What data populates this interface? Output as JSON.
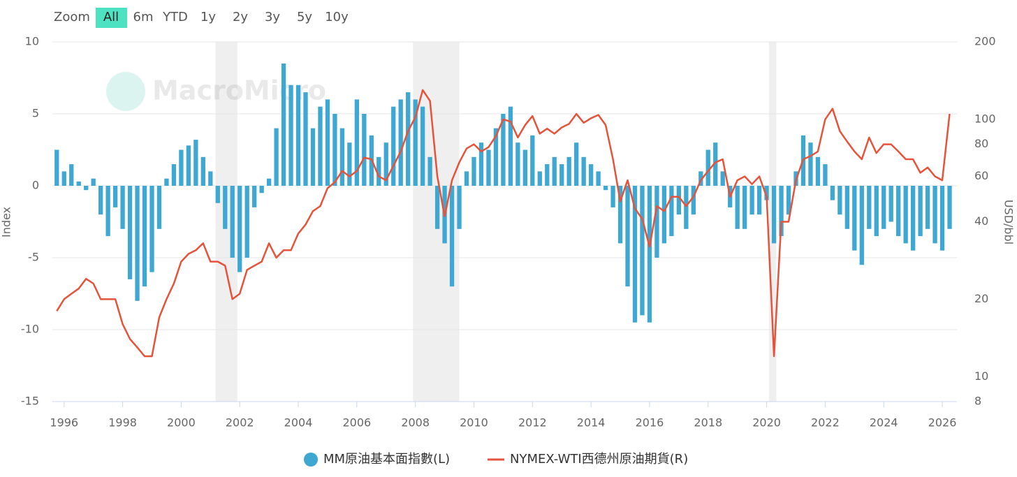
{
  "chart_data": {
    "type": "combo",
    "range_selector": {
      "label": "Zoom",
      "buttons": [
        "All",
        "6m",
        "YTD",
        "1y",
        "2y",
        "3y",
        "5y",
        "10y"
      ],
      "selected": 0
    },
    "watermark": "MacroMicro",
    "ylabel": "Index",
    "y2label": "USD/bbl",
    "xlim": [
      1995.6,
      2026.5
    ],
    "xticks": [
      1996,
      1998,
      2000,
      2002,
      2004,
      2006,
      2008,
      2010,
      2012,
      2014,
      2016,
      2018,
      2020,
      2022,
      2024,
      2026
    ],
    "ylim": [
      -15,
      10
    ],
    "yticks": [
      -15,
      -10,
      -5,
      0,
      5,
      10
    ],
    "y2lim": [
      8,
      200
    ],
    "y2ticks": [
      8,
      10,
      20,
      40,
      60,
      80,
      100,
      200
    ],
    "y2log": true,
    "grid": true,
    "legend": "bottom",
    "shading": [
      [
        2001.17,
        2001.92
      ],
      [
        2007.92,
        2009.5
      ],
      [
        2020.08,
        2020.33
      ]
    ],
    "x": [
      1995.75,
      1996,
      1996.25,
      1996.5,
      1996.75,
      1997,
      1997.25,
      1997.5,
      1997.75,
      1998,
      1998.25,
      1998.5,
      1998.75,
      1999,
      1999.25,
      1999.5,
      1999.75,
      2000,
      2000.25,
      2000.5,
      2000.75,
      2001,
      2001.25,
      2001.5,
      2001.75,
      2002,
      2002.25,
      2002.5,
      2002.75,
      2003,
      2003.25,
      2003.5,
      2003.75,
      2004,
      2004.25,
      2004.5,
      2004.75,
      2005,
      2005.25,
      2005.5,
      2005.75,
      2006,
      2006.25,
      2006.5,
      2006.75,
      2007,
      2007.25,
      2007.5,
      2007.75,
      2008,
      2008.25,
      2008.5,
      2008.75,
      2009,
      2009.25,
      2009.5,
      2009.75,
      2010,
      2010.25,
      2010.5,
      2010.75,
      2011,
      2011.25,
      2011.5,
      2011.75,
      2012,
      2012.25,
      2012.5,
      2012.75,
      2013,
      2013.25,
      2013.5,
      2013.75,
      2014,
      2014.25,
      2014.5,
      2014.75,
      2015,
      2015.25,
      2015.5,
      2015.75,
      2016,
      2016.25,
      2016.5,
      2016.75,
      2017,
      2017.25,
      2017.5,
      2017.75,
      2018,
      2018.25,
      2018.5,
      2018.75,
      2019,
      2019.25,
      2019.5,
      2019.75,
      2020,
      2020.25,
      2020.5,
      2020.75,
      2021,
      2021.25,
      2021.5,
      2021.75,
      2022,
      2022.25,
      2022.5,
      2022.75,
      2023,
      2023.25,
      2023.5,
      2023.75,
      2024,
      2024.25,
      2024.5,
      2024.75,
      2025,
      2025.25,
      2025.5,
      2025.75,
      2026,
      2026.25
    ],
    "series": [
      {
        "name": "MM原油基本面指數(L)",
        "type": "bar",
        "color": "#3ea7d2",
        "values": [
          2.5,
          1,
          1.5,
          0.3,
          -0.3,
          0.5,
          -2,
          -3.5,
          -1.5,
          -3,
          -6.5,
          -8,
          -7,
          -6,
          -3,
          0.5,
          1.5,
          2.5,
          2.8,
          3.2,
          2,
          1,
          -1.2,
          -3,
          -5,
          -6,
          -5,
          -1.5,
          -0.5,
          0.5,
          4,
          8.5,
          7,
          7,
          6.5,
          4,
          5.5,
          6,
          5,
          4,
          3,
          6,
          5,
          3.5,
          2,
          3,
          5.5,
          6,
          6.5,
          6,
          5.5,
          2,
          -3,
          -4,
          -7,
          -3,
          1,
          2,
          3,
          2.5,
          4,
          5,
          5.5,
          3,
          2.5,
          3.5,
          1,
          1.5,
          2,
          1.5,
          2,
          3,
          2,
          1.5,
          1,
          -0.3,
          -1.5,
          -4,
          -7,
          -9.5,
          -9,
          -9.5,
          -5,
          -4,
          -3.5,
          -2,
          -3,
          -2,
          1,
          2.5,
          3,
          1,
          -1.5,
          -3,
          -3,
          -2,
          -2,
          -1,
          -4,
          -3.5,
          -2,
          1,
          3.5,
          3,
          2,
          1.5,
          -1,
          -2,
          -3,
          -4.5,
          -5.5,
          -3,
          -3.5,
          -3,
          -2.5,
          -3.5,
          -4,
          -4.5,
          -3.5,
          -3,
          -4,
          -4.5,
          -3
        ]
      },
      {
        "name": "NYMEX-WTI西德州原油期貨(R)",
        "type": "line",
        "axis": "y2",
        "color": "#e5533b",
        "values": [
          18,
          20,
          21,
          22,
          24,
          23,
          20,
          20,
          20,
          16,
          14,
          13,
          12,
          12,
          17,
          20,
          23,
          28,
          30,
          31,
          33,
          28,
          28,
          27,
          20,
          21,
          26,
          27,
          28,
          33,
          29,
          31,
          31,
          36,
          39,
          44,
          46,
          54,
          57,
          63,
          60,
          63,
          71,
          70,
          60,
          58,
          66,
          75,
          90,
          102,
          130,
          118,
          60,
          42,
          58,
          68,
          77,
          80,
          75,
          78,
          86,
          100,
          98,
          85,
          95,
          103,
          88,
          92,
          88,
          93,
          96,
          105,
          97,
          101,
          104,
          95,
          70,
          48,
          58,
          45,
          41,
          32,
          46,
          44,
          50,
          50,
          46,
          50,
          58,
          63,
          68,
          70,
          50,
          58,
          60,
          56,
          60,
          50,
          12,
          40,
          40,
          58,
          70,
          72,
          75,
          100,
          110,
          90,
          82,
          75,
          70,
          85,
          74,
          80,
          80,
          75,
          70,
          70,
          62,
          65,
          60,
          58,
          105
        ]
      }
    ]
  }
}
